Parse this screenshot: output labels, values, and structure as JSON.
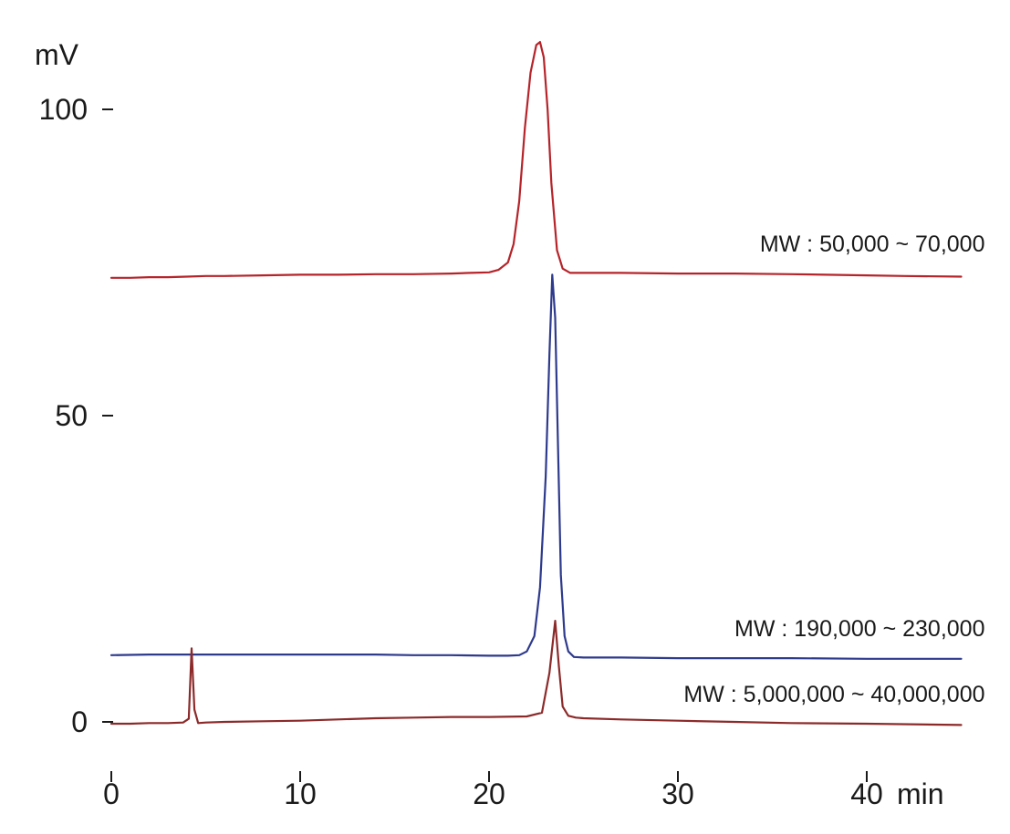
{
  "chart_data": {
    "type": "line",
    "title": "",
    "xlabel": "min",
    "ylabel": "mV",
    "xlim": [
      0,
      45
    ],
    "ylim": [
      -3,
      112
    ],
    "x_ticks": [
      {
        "value": 0,
        "label": "0"
      },
      {
        "value": 10,
        "label": "10"
      },
      {
        "value": 20,
        "label": "20"
      },
      {
        "value": 30,
        "label": "30"
      },
      {
        "value": 40,
        "label": "40"
      }
    ],
    "y_ticks": [
      {
        "value": 0,
        "label": "0"
      },
      {
        "value": 50,
        "label": "50"
      },
      {
        "value": 100,
        "label": "100"
      }
    ],
    "grid": false,
    "legend": "none",
    "series": [
      {
        "name": "MW : 50,000 ~ 70,000",
        "color": "#b5242a",
        "x": [
          0,
          1,
          2,
          3,
          4,
          5,
          6,
          8,
          10,
          12,
          14,
          16,
          18,
          19,
          20,
          20.5,
          21,
          21.3,
          21.6,
          21.9,
          22.2,
          22.5,
          22.7,
          22.9,
          23.1,
          23.3,
          23.6,
          23.9,
          24.3,
          25,
          27,
          30,
          33,
          36,
          40,
          42,
          45
        ],
        "values": [
          72.5,
          72.5,
          72.6,
          72.6,
          72.7,
          72.8,
          72.8,
          72.9,
          73.0,
          73.0,
          73.1,
          73.1,
          73.2,
          73.3,
          73.4,
          73.8,
          75.0,
          78.0,
          85.0,
          97.0,
          106.0,
          110.5,
          111.0,
          108.5,
          100.0,
          88.0,
          77.0,
          74.0,
          73.3,
          73.3,
          73.3,
          73.2,
          73.2,
          73.1,
          72.9,
          72.8,
          72.7
        ]
      },
      {
        "name": "MW : 190,000 ~ 230,000",
        "color": "#2e3a8c",
        "x": [
          0,
          2,
          4,
          6,
          8,
          10,
          12,
          14,
          16,
          18,
          20,
          21,
          21.6,
          22.0,
          22.4,
          22.7,
          23.0,
          23.2,
          23.35,
          23.5,
          23.65,
          23.8,
          24.0,
          24.2,
          24.5,
          25,
          27,
          30,
          33,
          36,
          40,
          45
        ],
        "values": [
          10.9,
          11.0,
          11.0,
          11.0,
          11.0,
          11.0,
          11.0,
          11.0,
          10.9,
          10.9,
          10.8,
          10.8,
          10.9,
          11.5,
          14.0,
          22.0,
          40.0,
          60.0,
          73.0,
          66.0,
          45.0,
          24.0,
          14.0,
          11.5,
          10.6,
          10.5,
          10.5,
          10.4,
          10.4,
          10.4,
          10.3,
          10.3
        ]
      },
      {
        "name": "MW : 5,000,000 ~ 40,000,000",
        "color": "#8c2a2a",
        "x": [
          0,
          1,
          2,
          3,
          3.8,
          4.1,
          4.25,
          4.4,
          4.6,
          5,
          6,
          8,
          10,
          12,
          14,
          16,
          18,
          20,
          22,
          22.8,
          23.2,
          23.5,
          23.7,
          23.9,
          24.2,
          24.6,
          25,
          27,
          30,
          33,
          36,
          40,
          45
        ],
        "values": [
          -0.3,
          -0.3,
          -0.2,
          -0.2,
          -0.1,
          0.5,
          12.0,
          2.0,
          -0.2,
          -0.1,
          0.0,
          0.1,
          0.2,
          0.4,
          0.6,
          0.7,
          0.8,
          0.8,
          0.9,
          1.5,
          8.0,
          16.5,
          9.0,
          2.5,
          1.0,
          0.7,
          0.6,
          0.4,
          0.2,
          0.0,
          -0.2,
          -0.3,
          -0.5
        ]
      }
    ],
    "annotations": [
      {
        "text": "MW : 50,000 ~ 70,000",
        "x": 45,
        "y": 73.2
      },
      {
        "text": "MW : 190,000 ~ 230,000",
        "x": 45,
        "y": 10.4
      },
      {
        "text": "MW : 5,000,000 ~ 40,000,000",
        "x": 45,
        "y": -0.3
      }
    ]
  }
}
